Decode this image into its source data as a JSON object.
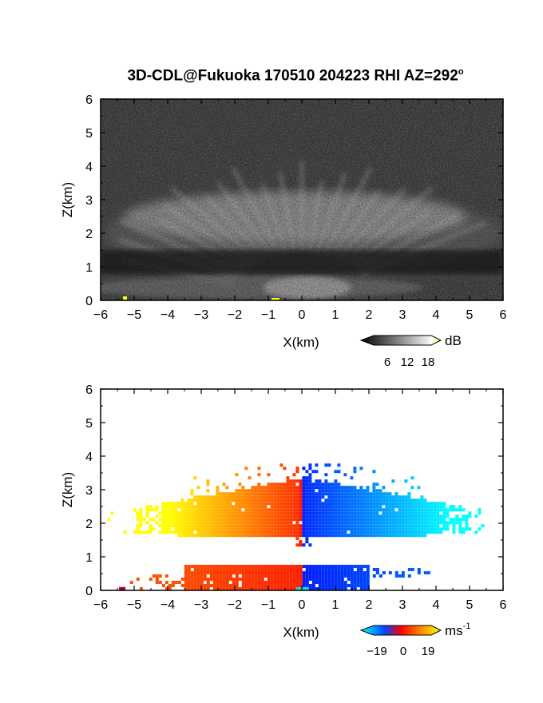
{
  "title": "3D-CDL@Fukuoka 170510 204223 RHI AZ=292",
  "title_degree": "o",
  "colors": {
    "reflectivity_background": "#2b2b2b",
    "reflectivity_bright": "#dcdcdc",
    "velocity_negative": [
      "#00ffff",
      "#0044ff"
    ],
    "velocity_positive": [
      "#ff2200",
      "#ffff00"
    ]
  },
  "chart_data": [
    {
      "type": "heatmap",
      "name": "reflectivity",
      "xlabel": "X(km)",
      "ylabel": "Z(km)",
      "xlim": [
        -6,
        6
      ],
      "ylim": [
        0,
        6
      ],
      "xticks": [
        "-6",
        "-5",
        "-4",
        "-3",
        "-2",
        "-1",
        "0",
        "1",
        "2",
        "3",
        "4",
        "5",
        "6"
      ],
      "yticks": [
        "0",
        "1",
        "2",
        "3",
        "4",
        "5",
        "6"
      ],
      "colorbar": {
        "unit": "dB",
        "ticks": [
          "6",
          "12",
          "18"
        ],
        "range": [
          0,
          22
        ]
      },
      "features": [
        {
          "label": "upper layer",
          "z_range": [
            1.6,
            3.4
          ],
          "x_range": [
            -5.8,
            5.6
          ]
        },
        {
          "label": "lower layer",
          "z_range": [
            0.0,
            0.8
          ],
          "x_range": [
            -5.6,
            2.0
          ]
        }
      ]
    },
    {
      "type": "heatmap",
      "name": "doppler velocity",
      "xlabel": "X(km)",
      "ylabel": "Z(km)",
      "xlim": [
        -6,
        6
      ],
      "ylim": [
        0,
        6
      ],
      "xticks": [
        "-6",
        "-5",
        "-4",
        "-3",
        "-2",
        "-1",
        "0",
        "1",
        "2",
        "3",
        "4",
        "5",
        "6"
      ],
      "yticks": [
        "0",
        "1",
        "2",
        "3",
        "4",
        "5",
        "6"
      ],
      "colorbar": {
        "unit": "ms",
        "unit_exponent": "-1",
        "ticks": [
          "−19",
          "0",
          "19"
        ],
        "range": [
          -19,
          19
        ]
      },
      "features": [
        {
          "label": "upper layer",
          "z_range": [
            1.5,
            3.8
          ],
          "x_range": [
            -5.7,
            5.5
          ]
        },
        {
          "label": "lower layer",
          "z_range": [
            0.0,
            0.8
          ],
          "x_range": [
            -5.5,
            3.8
          ]
        }
      ]
    }
  ]
}
